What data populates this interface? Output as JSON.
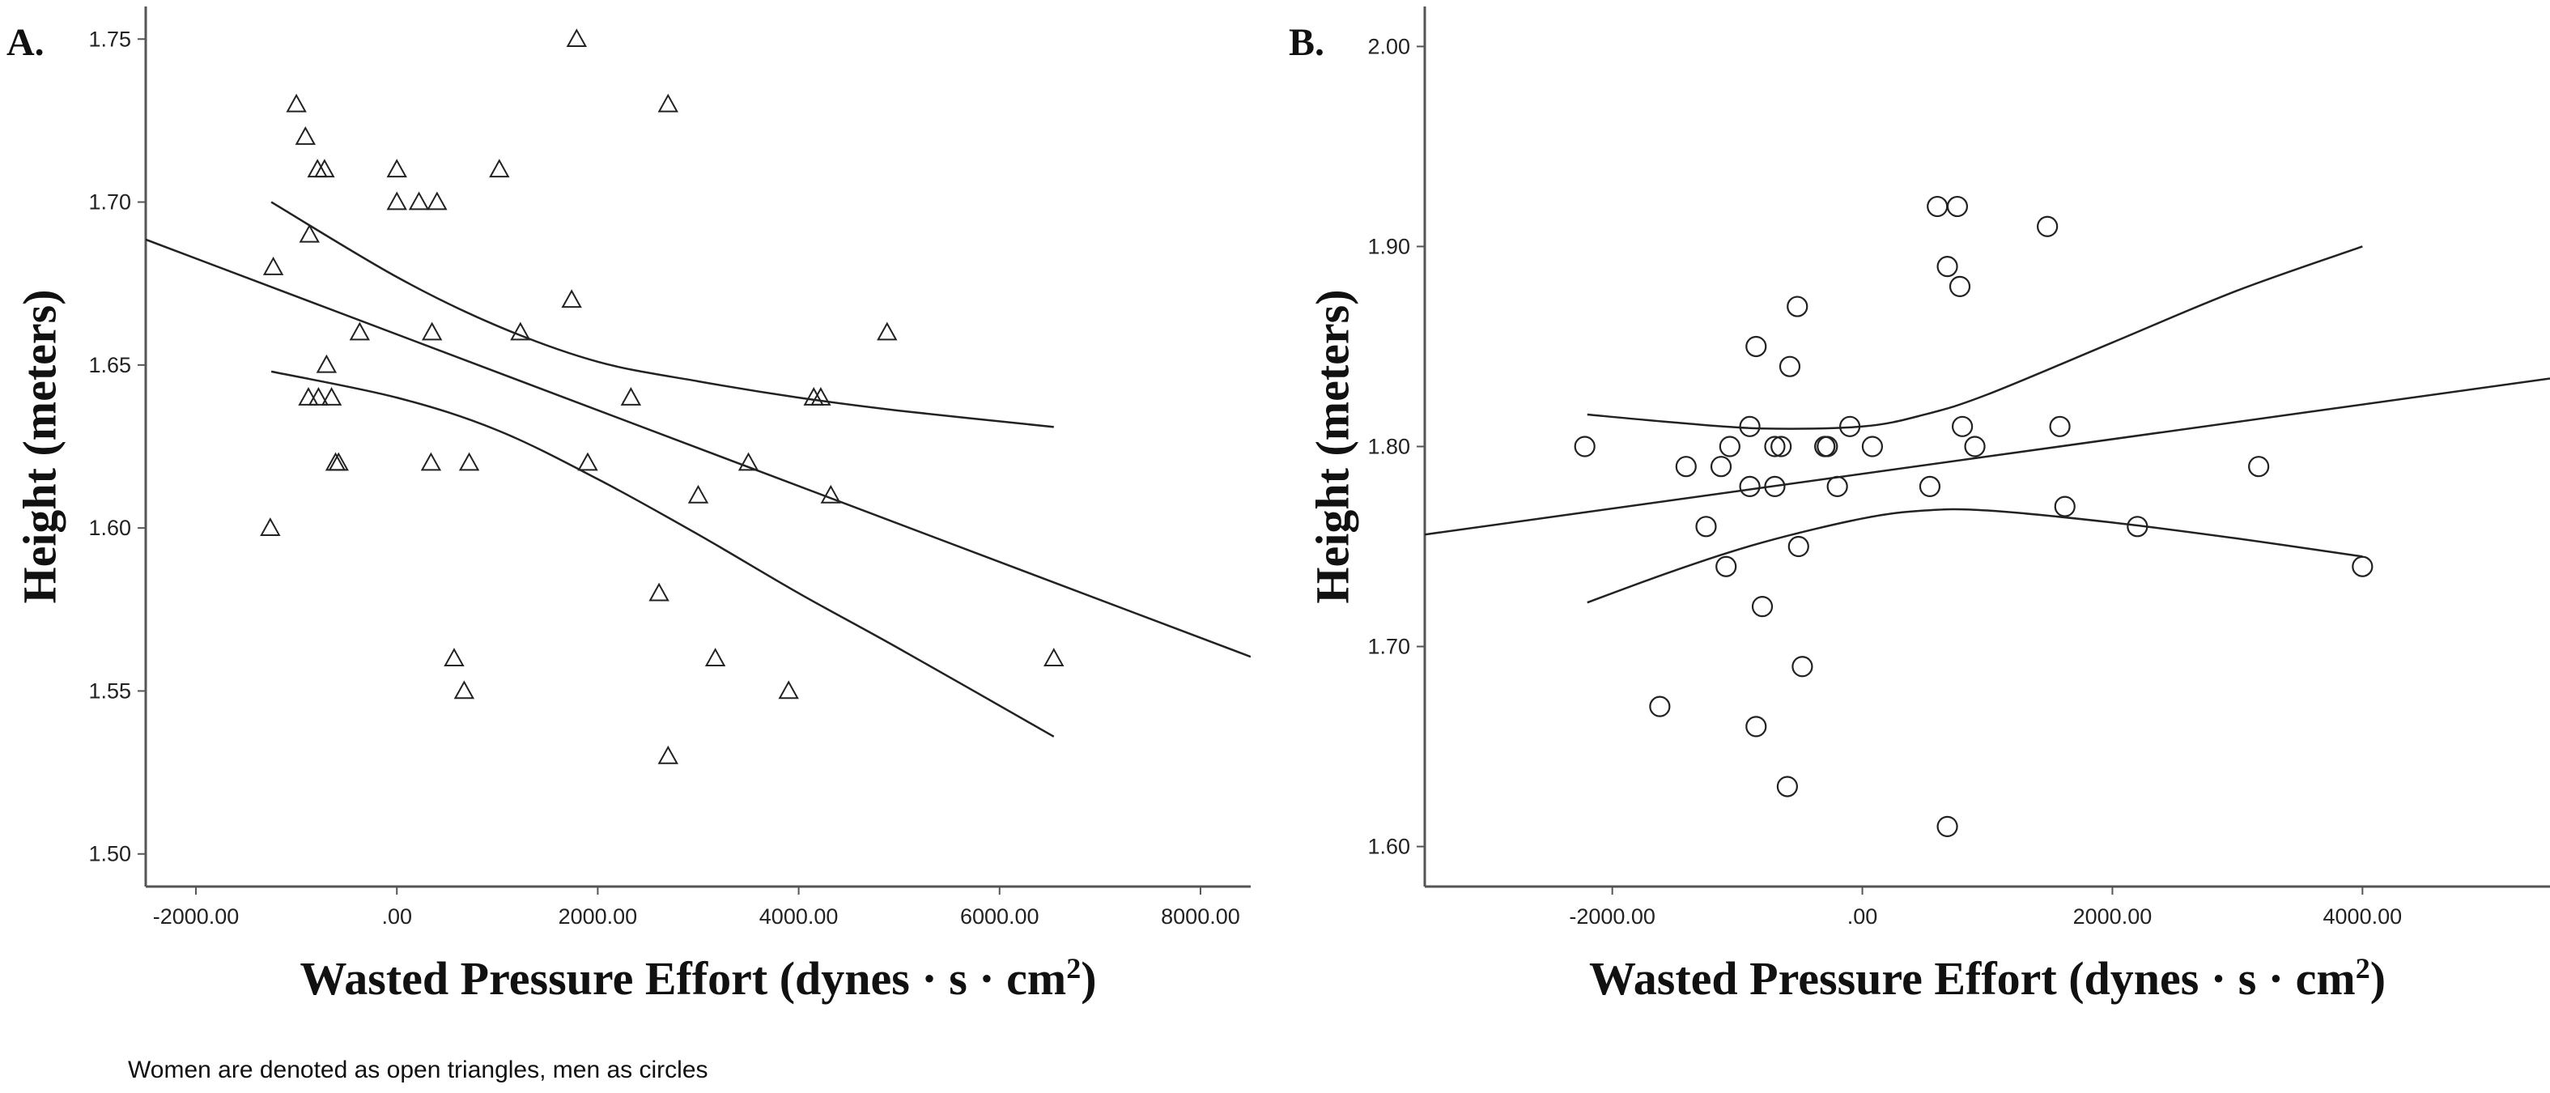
{
  "caption": "Women are denoted as open triangles, men as circles",
  "chart_data": [
    {
      "type": "scatter",
      "panel_label": "A.",
      "marker": "triangle",
      "xlabel": "Wasted Pressure Effort (dynes · s · cm",
      "xlabel_sup": "2",
      "xlabel_end": ")",
      "ylabel": "Height (meters)",
      "xlim": [
        -2500,
        8500
      ],
      "ylim": [
        1.49,
        1.76
      ],
      "xticks": [
        -2000,
        0,
        2000,
        4000,
        6000,
        8000
      ],
      "xtick_labels": [
        "-2000.00",
        ".00",
        "2000.00",
        "4000.00",
        "6000.00",
        "8000.00"
      ],
      "yticks": [
        1.5,
        1.55,
        1.6,
        1.65,
        1.7,
        1.75
      ],
      "ytick_labels": [
        "1.50",
        "1.55",
        "1.60",
        "1.65",
        "1.70",
        "1.75"
      ],
      "points": [
        [
          -1230,
          1.68
        ],
        [
          -1260,
          1.6
        ],
        [
          -1000,
          1.73
        ],
        [
          -910,
          1.72
        ],
        [
          -870,
          1.69
        ],
        [
          -790,
          1.71
        ],
        [
          -720,
          1.71
        ],
        [
          -700,
          1.65
        ],
        [
          -880,
          1.64
        ],
        [
          -780,
          1.64
        ],
        [
          -650,
          1.64
        ],
        [
          -610,
          1.62
        ],
        [
          -580,
          1.62
        ],
        [
          -370,
          1.66
        ],
        [
          0,
          1.71
        ],
        [
          0,
          1.7
        ],
        [
          220,
          1.7
        ],
        [
          400,
          1.7
        ],
        [
          350,
          1.66
        ],
        [
          340,
          1.62
        ],
        [
          720,
          1.62
        ],
        [
          570,
          1.56
        ],
        [
          670,
          1.55
        ],
        [
          1020,
          1.71
        ],
        [
          1230,
          1.66
        ],
        [
          1740,
          1.67
        ],
        [
          1790,
          1.75
        ],
        [
          1900,
          1.62
        ],
        [
          2330,
          1.64
        ],
        [
          2610,
          1.58
        ],
        [
          2700,
          1.73
        ],
        [
          2700,
          1.53
        ],
        [
          3000,
          1.61
        ],
        [
          3170,
          1.56
        ],
        [
          3500,
          1.62
        ],
        [
          3900,
          1.55
        ],
        [
          4150,
          1.64
        ],
        [
          4220,
          1.64
        ],
        [
          4320,
          1.61
        ],
        [
          4880,
          1.66
        ],
        [
          6540,
          1.56
        ]
      ],
      "fit_line": [
        [
          -2500,
          1.6885
        ],
        [
          8500,
          1.5605
        ]
      ],
      "ci_upper": [
        [
          -1250,
          1.7
        ],
        [
          0,
          1.677
        ],
        [
          1000,
          1.662
        ],
        [
          2000,
          1.651
        ],
        [
          3000,
          1.645
        ],
        [
          4000,
          1.64
        ],
        [
          5000,
          1.636
        ],
        [
          6540,
          1.631
        ]
      ],
      "ci_lower": [
        [
          -1250,
          1.648
        ],
        [
          0,
          1.64
        ],
        [
          1000,
          1.63
        ],
        [
          2000,
          1.615
        ],
        [
          3000,
          1.598
        ],
        [
          4000,
          1.58
        ],
        [
          5000,
          1.563
        ],
        [
          6540,
          1.536
        ]
      ]
    },
    {
      "type": "scatter",
      "panel_label": "B.",
      "marker": "circle",
      "xlabel": "Wasted Pressure Effort (dynes · s · cm",
      "xlabel_sup": "2",
      "xlabel_end": ")",
      "ylabel": "Height (meters)",
      "xlim": [
        -3500,
        5500
      ],
      "ylim": [
        1.58,
        2.02
      ],
      "xticks": [
        -2000,
        0,
        2000,
        4000
      ],
      "xtick_labels": [
        "-2000.00",
        ".00",
        "2000.00",
        "4000.00"
      ],
      "yticks": [
        1.6,
        1.7,
        1.8,
        1.9,
        2.0
      ],
      "ytick_labels": [
        "1.60",
        "1.70",
        "1.80",
        "1.90",
        "2.00"
      ],
      "points": [
        [
          -2220,
          1.8
        ],
        [
          -1410,
          1.79
        ],
        [
          -1620,
          1.67
        ],
        [
          -1250,
          1.76
        ],
        [
          -1130,
          1.79
        ],
        [
          -1060,
          1.8
        ],
        [
          -1090,
          1.74
        ],
        [
          -900,
          1.81
        ],
        [
          -850,
          1.85
        ],
        [
          -900,
          1.78
        ],
        [
          -800,
          1.72
        ],
        [
          -850,
          1.66
        ],
        [
          -700,
          1.78
        ],
        [
          -700,
          1.8
        ],
        [
          -650,
          1.8
        ],
        [
          -580,
          1.84
        ],
        [
          -520,
          1.87
        ],
        [
          -510,
          1.75
        ],
        [
          -480,
          1.69
        ],
        [
          -600,
          1.63
        ],
        [
          -300,
          1.8
        ],
        [
          -300,
          1.8
        ],
        [
          -280,
          1.8
        ],
        [
          -200,
          1.78
        ],
        [
          -100,
          1.81
        ],
        [
          80,
          1.8
        ],
        [
          540,
          1.78
        ],
        [
          600,
          1.92
        ],
        [
          680,
          1.89
        ],
        [
          760,
          1.92
        ],
        [
          780,
          1.88
        ],
        [
          800,
          1.81
        ],
        [
          900,
          1.8
        ],
        [
          680,
          1.61
        ],
        [
          1480,
          1.91
        ],
        [
          1580,
          1.81
        ],
        [
          1620,
          1.77
        ],
        [
          2200,
          1.76
        ],
        [
          3170,
          1.79
        ],
        [
          4000,
          1.74
        ]
      ],
      "fit_line": [
        [
          -3500,
          1.756
        ],
        [
          5500,
          1.834
        ]
      ],
      "ci_upper": [
        [
          -2200,
          1.816
        ],
        [
          -1500,
          1.812
        ],
        [
          -800,
          1.809
        ],
        [
          0,
          1.81
        ],
        [
          500,
          1.816
        ],
        [
          1000,
          1.826
        ],
        [
          2000,
          1.852
        ],
        [
          3000,
          1.878
        ],
        [
          4000,
          1.9
        ]
      ],
      "ci_lower": [
        [
          -2200,
          1.722
        ],
        [
          -1500,
          1.738
        ],
        [
          -800,
          1.752
        ],
        [
          0,
          1.764
        ],
        [
          500,
          1.768
        ],
        [
          1000,
          1.768
        ],
        [
          2000,
          1.762
        ],
        [
          3000,
          1.754
        ],
        [
          4000,
          1.745
        ]
      ]
    }
  ]
}
